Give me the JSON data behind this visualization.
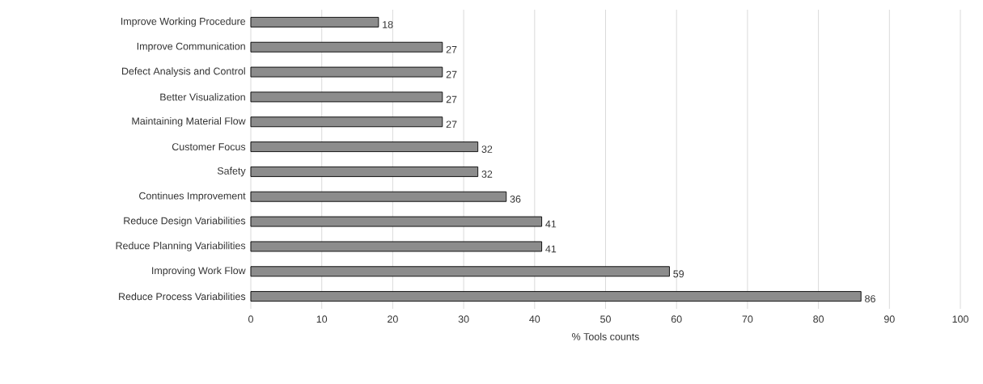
{
  "chart_data": {
    "type": "bar",
    "orientation": "horizontal",
    "xlabel": "% Tools counts",
    "categories": [
      "Improve Working Procedure",
      "Improve Communication",
      "Defect Analysis and Control",
      "Better Visualization",
      "Maintaining Material Flow",
      "Customer Focus",
      "Safety",
      "Continues Improvement",
      "Reduce Design Variabilities",
      "Reduce Planning Variabilities",
      "Improving Work Flow",
      "Reduce Process Variabilities"
    ],
    "values": [
      18,
      27,
      27,
      27,
      27,
      32,
      32,
      36,
      41,
      41,
      59,
      86
    ],
    "color": "#8c8c8c",
    "xlim": [
      0,
      100
    ],
    "xticks": [
      0,
      10,
      20,
      30,
      40,
      50,
      60,
      70,
      80,
      90,
      100
    ],
    "grid": "x",
    "data_labels": true
  }
}
